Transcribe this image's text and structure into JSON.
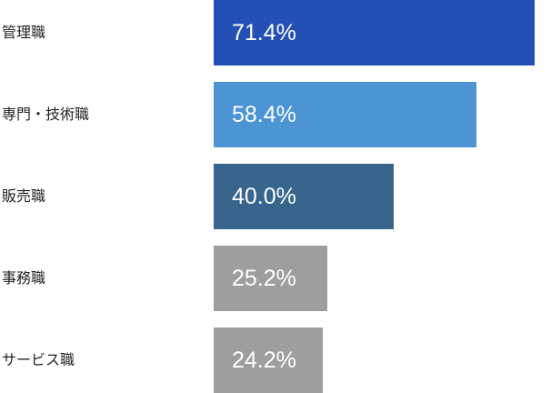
{
  "chart_data": {
    "type": "bar",
    "orientation": "horizontal",
    "categories": [
      "管理職",
      "専門・技術職",
      "販売職",
      "事務職",
      "サービス職"
    ],
    "values": [
      71.4,
      58.4,
      40.0,
      25.2,
      24.2
    ],
    "value_labels": [
      "71.4%",
      "58.4%",
      "40.0%",
      "25.2%",
      "24.2%"
    ],
    "bar_colors": [
      "#2350b4",
      "#4c94d3",
      "#37658c",
      "#9e9e9e",
      "#9e9e9e"
    ],
    "xlim": [
      0,
      75
    ]
  }
}
